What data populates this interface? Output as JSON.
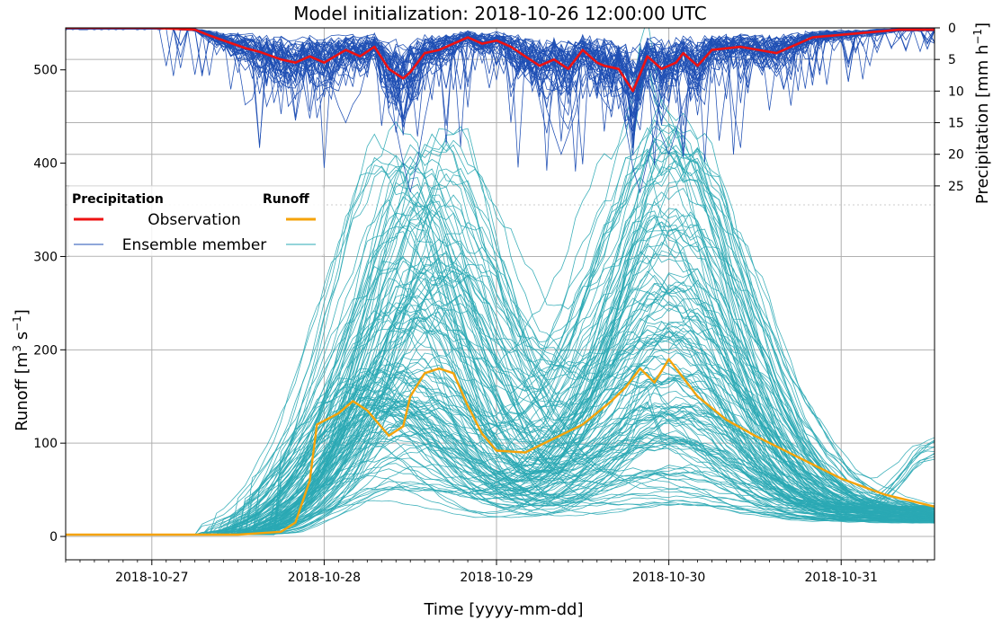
{
  "chart_data": {
    "type": "line",
    "title": "Model initialization: 2018-10-26 12:00:00 UTC",
    "xlabel": "Time [yyyy-mm-dd]",
    "x_range": [
      "2018-10-26 12:00",
      "2018-10-31 13:00"
    ],
    "x_ticks": [
      "2018-10-27",
      "2018-10-28",
      "2018-10-29",
      "2018-10-30",
      "2018-10-31"
    ],
    "grid": true,
    "legend_position": "upper-left",
    "legend": {
      "headers": [
        "Precipitation",
        "Runoff"
      ],
      "entries": [
        "Observation",
        "Ensemble member"
      ]
    },
    "colors": {
      "precip_obs": "#ee1111",
      "precip_ens": "#1f4fb4",
      "runoff_obs": "#f5a30a",
      "runoff_ens": "#2aa8b4"
    },
    "precipitation": {
      "ylabel_main": "Precipitation [mm h",
      "ylabel_sup": "−1",
      "ylabel_end": "]",
      "inverted": true,
      "ylim": [
        0,
        28
      ],
      "y_ticks": [
        0,
        5,
        10,
        15,
        20,
        25
      ],
      "observation": {
        "name": "Observation",
        "x": [
          "2018-10-26 12:00",
          "2018-10-27 00:00",
          "2018-10-27 06:00",
          "2018-10-27 08:00",
          "2018-10-27 10:00",
          "2018-10-27 13:00",
          "2018-10-27 15:00",
          "2018-10-27 18:00",
          "2018-10-27 20:00",
          "2018-10-27 22:00",
          "2018-10-28 00:00",
          "2018-10-28 03:00",
          "2018-10-28 05:00",
          "2018-10-28 07:00",
          "2018-10-28 09:00",
          "2018-10-28 11:00",
          "2018-10-28 12:00",
          "2018-10-28 14:00",
          "2018-10-28 16:00",
          "2018-10-28 18:00",
          "2018-10-28 20:00",
          "2018-10-28 22:00",
          "2018-10-29 00:00",
          "2018-10-29 02:00",
          "2018-10-29 04:00",
          "2018-10-29 06:00",
          "2018-10-29 08:00",
          "2018-10-29 10:00",
          "2018-10-29 12:00",
          "2018-10-29 14:00",
          "2018-10-29 15:00",
          "2018-10-29 17:00",
          "2018-10-29 19:00",
          "2018-10-29 21:00",
          "2018-10-29 23:00",
          "2018-10-30 01:00",
          "2018-10-30 02:00",
          "2018-10-30 04:00",
          "2018-10-30 06:00",
          "2018-10-30 10:00",
          "2018-10-30 15:00",
          "2018-10-30 20:00",
          "2018-10-31 08:00",
          "2018-10-31 13:00"
        ],
        "y": [
          0,
          0,
          0.3,
          1.2,
          2.0,
          3.2,
          3.8,
          5.0,
          5.5,
          4.5,
          5.5,
          3.5,
          4.5,
          3.0,
          6.5,
          8.0,
          7.0,
          4.0,
          3.5,
          2.5,
          1.5,
          2.5,
          2.0,
          3.0,
          4.5,
          6.0,
          5.0,
          6.5,
          3.5,
          5.5,
          6.0,
          6.5,
          10.0,
          4.5,
          6.5,
          5.5,
          4.0,
          6.0,
          3.5,
          3.0,
          4.0,
          1.5,
          0.3,
          0.3
        ]
      },
      "ensemble": {
        "name": "Ensemble member",
        "count": 40,
        "min_peak_y": 26
      }
    },
    "runoff": {
      "ylabel_main": "Runoff [m",
      "ylabel_sup1": "3",
      "ylabel_mid": " s",
      "ylabel_sup2": "−1",
      "ylabel_end": "]",
      "ylim": [
        -25,
        545
      ],
      "y_ticks": [
        0,
        100,
        200,
        300,
        400,
        500
      ],
      "observation": {
        "name": "Observation",
        "x": [
          "2018-10-26 12:00",
          "2018-10-27 00:00",
          "2018-10-27 12:00",
          "2018-10-27 18:00",
          "2018-10-27 20:00",
          "2018-10-27 22:00",
          "2018-10-27 23:00",
          "2018-10-28 02:00",
          "2018-10-28 04:00",
          "2018-10-28 06:00",
          "2018-10-28 09:00",
          "2018-10-28 11:00",
          "2018-10-28 12:00",
          "2018-10-28 14:00",
          "2018-10-28 16:00",
          "2018-10-28 18:00",
          "2018-10-28 20:00",
          "2018-10-28 22:00",
          "2018-10-29 00:00",
          "2018-10-29 04:00",
          "2018-10-29 08:00",
          "2018-10-29 12:00",
          "2018-10-29 16:00",
          "2018-10-29 18:00",
          "2018-10-29 20:00",
          "2018-10-29 22:00",
          "2018-10-30 00:00",
          "2018-10-30 02:00",
          "2018-10-30 04:00",
          "2018-10-30 08:00",
          "2018-10-30 12:00",
          "2018-10-30 18:00",
          "2018-10-31 00:00",
          "2018-10-31 06:00",
          "2018-10-31 13:00"
        ],
        "y": [
          2,
          2,
          2,
          5,
          15,
          60,
          120,
          132,
          145,
          135,
          108,
          118,
          150,
          175,
          180,
          175,
          140,
          110,
          92,
          90,
          105,
          120,
          145,
          160,
          180,
          165,
          190,
          170,
          150,
          125,
          108,
          85,
          62,
          45,
          32
        ]
      },
      "ensemble": {
        "name": "Ensemble member",
        "count": 150,
        "max_y": 510
      }
    }
  }
}
